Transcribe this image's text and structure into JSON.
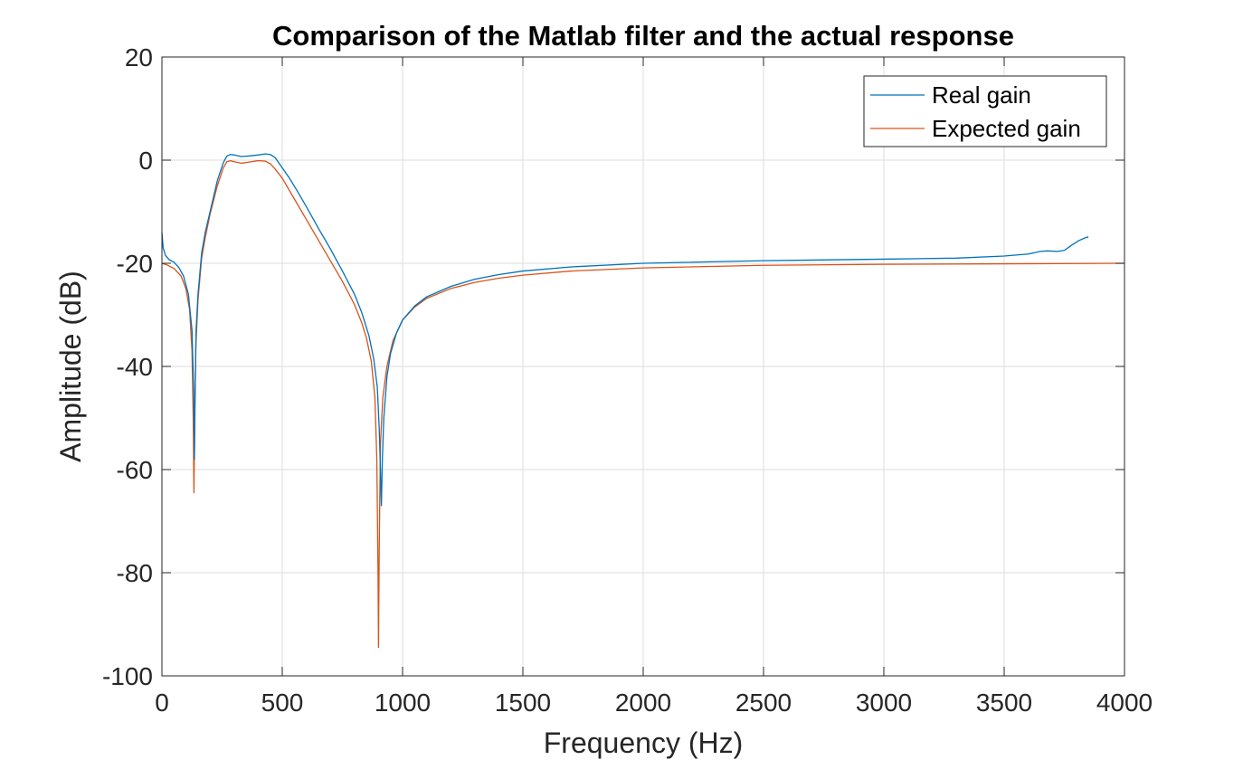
{
  "chart_data": {
    "type": "line",
    "title": "Comparison of the Matlab filter and the actual response",
    "xlabel": "Frequency (Hz)",
    "ylabel": "Amplitude (dB)",
    "xlim": [
      0,
      4000
    ],
    "ylim": [
      -100,
      20
    ],
    "xticks": [
      0,
      500,
      1000,
      1500,
      2000,
      2500,
      3000,
      3500,
      4000
    ],
    "yticks": [
      -100,
      -80,
      -60,
      -40,
      -20,
      0,
      20
    ],
    "grid": true,
    "legend_position": "top-right",
    "series": [
      {
        "name": "Real gain",
        "color": "#0072BD",
        "points": [
          [
            0,
            -14
          ],
          [
            5,
            -17
          ],
          [
            15,
            -18.5
          ],
          [
            30,
            -19.3
          ],
          [
            50,
            -19.8
          ],
          [
            70,
            -20.8
          ],
          [
            90,
            -22.5
          ],
          [
            110,
            -26
          ],
          [
            125,
            -33
          ],
          [
            132,
            -45
          ],
          [
            135,
            -58
          ],
          [
            138,
            -45
          ],
          [
            142,
            -33
          ],
          [
            150,
            -26
          ],
          [
            165,
            -18
          ],
          [
            180,
            -14
          ],
          [
            200,
            -10
          ],
          [
            230,
            -4
          ],
          [
            255,
            -0.5
          ],
          [
            270,
            0.8
          ],
          [
            285,
            1.1
          ],
          [
            300,
            1.0
          ],
          [
            330,
            0.7
          ],
          [
            360,
            0.8
          ],
          [
            400,
            1.0
          ],
          [
            430,
            1.2
          ],
          [
            450,
            1.1
          ],
          [
            470,
            0.5
          ],
          [
            500,
            -1.5
          ],
          [
            530,
            -3.5
          ],
          [
            560,
            -5.8
          ],
          [
            600,
            -9
          ],
          [
            650,
            -13.2
          ],
          [
            700,
            -17.2
          ],
          [
            750,
            -21.5
          ],
          [
            800,
            -26
          ],
          [
            830,
            -29.5
          ],
          [
            860,
            -34
          ],
          [
            880,
            -38.5
          ],
          [
            895,
            -44
          ],
          [
            903,
            -52
          ],
          [
            908,
            -60
          ],
          [
            912,
            -67
          ],
          [
            916,
            -58
          ],
          [
            922,
            -50
          ],
          [
            935,
            -42
          ],
          [
            950,
            -37.5
          ],
          [
            975,
            -33.5
          ],
          [
            1000,
            -31
          ],
          [
            1050,
            -28.3
          ],
          [
            1100,
            -26.5
          ],
          [
            1200,
            -24.5
          ],
          [
            1300,
            -23.1
          ],
          [
            1400,
            -22.2
          ],
          [
            1500,
            -21.5
          ],
          [
            1700,
            -20.7
          ],
          [
            2000,
            -20.0
          ],
          [
            2500,
            -19.5
          ],
          [
            3000,
            -19.2
          ],
          [
            3300,
            -19.0
          ],
          [
            3500,
            -18.6
          ],
          [
            3600,
            -18.2
          ],
          [
            3650,
            -17.7
          ],
          [
            3680,
            -17.6
          ],
          [
            3720,
            -17.7
          ],
          [
            3750,
            -17.5
          ],
          [
            3780,
            -16.5
          ],
          [
            3810,
            -15.6
          ],
          [
            3840,
            -15.0
          ],
          [
            3850,
            -14.9
          ]
        ]
      },
      {
        "name": "Expected gain",
        "color": "#D95319",
        "points": [
          [
            0,
            -20
          ],
          [
            20,
            -20.3
          ],
          [
            50,
            -21
          ],
          [
            80,
            -22.5
          ],
          [
            100,
            -25
          ],
          [
            115,
            -29
          ],
          [
            125,
            -37
          ],
          [
            130,
            -50
          ],
          [
            133,
            -64.5
          ],
          [
            136,
            -50
          ],
          [
            141,
            -36
          ],
          [
            150,
            -27
          ],
          [
            165,
            -19
          ],
          [
            180,
            -15
          ],
          [
            200,
            -10.5
          ],
          [
            230,
            -5
          ],
          [
            255,
            -1.5
          ],
          [
            270,
            -0.3
          ],
          [
            285,
            -0.1
          ],
          [
            300,
            -0.3
          ],
          [
            330,
            -0.6
          ],
          [
            360,
            -0.4
          ],
          [
            400,
            -0.1
          ],
          [
            430,
            -0.2
          ],
          [
            450,
            -0.7
          ],
          [
            470,
            -1.7
          ],
          [
            500,
            -3.5
          ],
          [
            550,
            -7.5
          ],
          [
            600,
            -11.5
          ],
          [
            650,
            -15.5
          ],
          [
            700,
            -19.5
          ],
          [
            750,
            -23.5
          ],
          [
            800,
            -28
          ],
          [
            830,
            -31.5
          ],
          [
            850,
            -34.5
          ],
          [
            870,
            -39
          ],
          [
            885,
            -46
          ],
          [
            893,
            -58
          ],
          [
            898,
            -80
          ],
          [
            900,
            -94.5
          ],
          [
            903,
            -75
          ],
          [
            908,
            -55
          ],
          [
            918,
            -46
          ],
          [
            935,
            -40
          ],
          [
            960,
            -35
          ],
          [
            1000,
            -31
          ],
          [
            1050,
            -28.5
          ],
          [
            1100,
            -26.8
          ],
          [
            1200,
            -24.9
          ],
          [
            1300,
            -23.7
          ],
          [
            1400,
            -22.9
          ],
          [
            1500,
            -22.3
          ],
          [
            1700,
            -21.5
          ],
          [
            2000,
            -20.9
          ],
          [
            2500,
            -20.4
          ],
          [
            3000,
            -20.2
          ],
          [
            3500,
            -20.1
          ],
          [
            4000,
            -20.0
          ]
        ]
      }
    ]
  }
}
